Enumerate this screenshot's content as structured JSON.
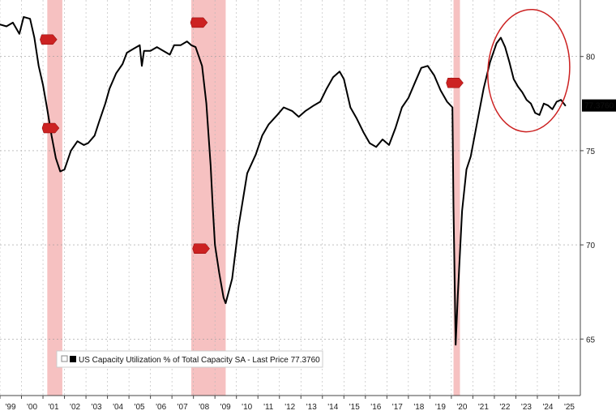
{
  "chart_data": {
    "type": "line",
    "title": "",
    "xlabel": "",
    "ylabel": "",
    "xlim": [
      1999.0,
      2026.0
    ],
    "ylim": [
      62.0,
      83.0
    ],
    "y_ticks": [
      65,
      70,
      75,
      80
    ],
    "x_tick_labels": [
      "'99",
      "'00",
      "'01",
      "'02",
      "'03",
      "'04",
      "'05",
      "'06",
      "'07",
      "'08",
      "'09",
      "'10",
      "'11",
      "'12",
      "'13",
      "'14",
      "'15",
      "'16",
      "'17",
      "'18",
      "'19",
      "'20",
      "'21",
      "'22",
      "'23",
      "'24",
      "'25"
    ],
    "grid": "dashed",
    "legend": {
      "placement": "bottom-left",
      "label": "US Capacity Utilization % of Total Capacity SA - Last Price 77.3760"
    },
    "last_value_label": "77.3760",
    "colors": {
      "line": "#000000",
      "recession": "#f4b6b6",
      "annotation": "#cc2222",
      "last_box": "#000000"
    },
    "recessions": [
      [
        2001.2,
        2001.9
      ],
      [
        2007.9,
        2009.5
      ],
      [
        2020.1,
        2020.4
      ]
    ],
    "recession_tags": [
      {
        "x": 2001.2,
        "y": 80.9
      },
      {
        "x": 2001.3,
        "y": 76.2
      },
      {
        "x": 2008.2,
        "y": 81.8
      },
      {
        "x": 2008.3,
        "y": 69.8
      },
      {
        "x": 2020.1,
        "y": 78.6
      }
    ],
    "annotation": {
      "type": "ellipse",
      "x_range": [
        2021.7,
        2025.5
      ],
      "y_range": [
        76.0,
        82.5
      ]
    },
    "series": [
      {
        "values_x": [
          1999.0,
          1999.3,
          1999.6,
          1999.9,
          2000.1,
          2000.4,
          2000.6,
          2000.8,
          2001.0,
          2001.2,
          2001.4,
          2001.6,
          2001.8,
          2002.0,
          2002.3,
          2002.6,
          2002.9,
          2003.1,
          2003.4,
          2003.6,
          2003.9,
          2004.1,
          2004.4,
          2004.7,
          2004.9,
          2005.2,
          2005.5,
          2005.6,
          2005.7,
          2006.0,
          2006.3,
          2006.6,
          2006.9,
          2007.1,
          2007.4,
          2007.7,
          2007.9,
          2008.1,
          2008.4,
          2008.6,
          2008.8,
          2008.9,
          2009.0,
          2009.2,
          2009.4,
          2009.5,
          2009.8,
          2010.1,
          2010.5,
          2010.9,
          2011.2,
          2011.5,
          2011.9,
          2012.2,
          2012.6,
          2012.9,
          2013.2,
          2013.6,
          2013.9,
          2014.2,
          2014.5,
          2014.8,
          2015.0,
          2015.3,
          2015.6,
          2015.9,
          2016.2,
          2016.5,
          2016.8,
          2017.1,
          2017.4,
          2017.7,
          2018.0,
          2018.3,
          2018.6,
          2018.9,
          2019.2,
          2019.5,
          2019.8,
          2020.05,
          2020.1,
          2020.2,
          2020.3,
          2020.5,
          2020.7,
          2020.9,
          2021.2,
          2021.5,
          2021.8,
          2022.1,
          2022.3,
          2022.5,
          2022.7,
          2022.9,
          2023.1,
          2023.3,
          2023.5,
          2023.7,
          2023.9,
          2024.1,
          2024.3,
          2024.5,
          2024.7,
          2024.9,
          2025.1,
          2025.3
        ],
        "values_y": [
          81.7,
          81.6,
          81.8,
          81.2,
          82.1,
          82.0,
          81.0,
          79.5,
          78.5,
          77.2,
          75.8,
          74.6,
          73.9,
          74.0,
          75.0,
          75.5,
          75.3,
          75.4,
          75.8,
          76.5,
          77.5,
          78.3,
          79.1,
          79.6,
          80.2,
          80.4,
          80.6,
          79.5,
          80.3,
          80.3,
          80.5,
          80.3,
          80.1,
          80.6,
          80.6,
          80.8,
          80.6,
          80.5,
          79.5,
          77.5,
          74.2,
          72.0,
          70.0,
          68.5,
          67.2,
          66.9,
          68.2,
          71.0,
          73.8,
          74.8,
          75.8,
          76.4,
          76.9,
          77.3,
          77.1,
          76.8,
          77.1,
          77.4,
          77.6,
          78.3,
          78.9,
          79.2,
          78.8,
          77.3,
          76.7,
          76.0,
          75.4,
          75.2,
          75.6,
          75.3,
          76.2,
          77.3,
          77.8,
          78.6,
          79.4,
          79.5,
          79.0,
          78.2,
          77.6,
          77.3,
          72.0,
          64.7,
          67.3,
          71.8,
          74.0,
          74.7,
          76.5,
          78.3,
          79.7,
          80.7,
          81.0,
          80.5,
          79.7,
          78.8,
          78.4,
          78.1,
          77.7,
          77.5,
          77.0,
          76.9,
          77.5,
          77.4,
          77.2,
          77.6,
          77.7,
          77.4
        ]
      }
    ]
  }
}
